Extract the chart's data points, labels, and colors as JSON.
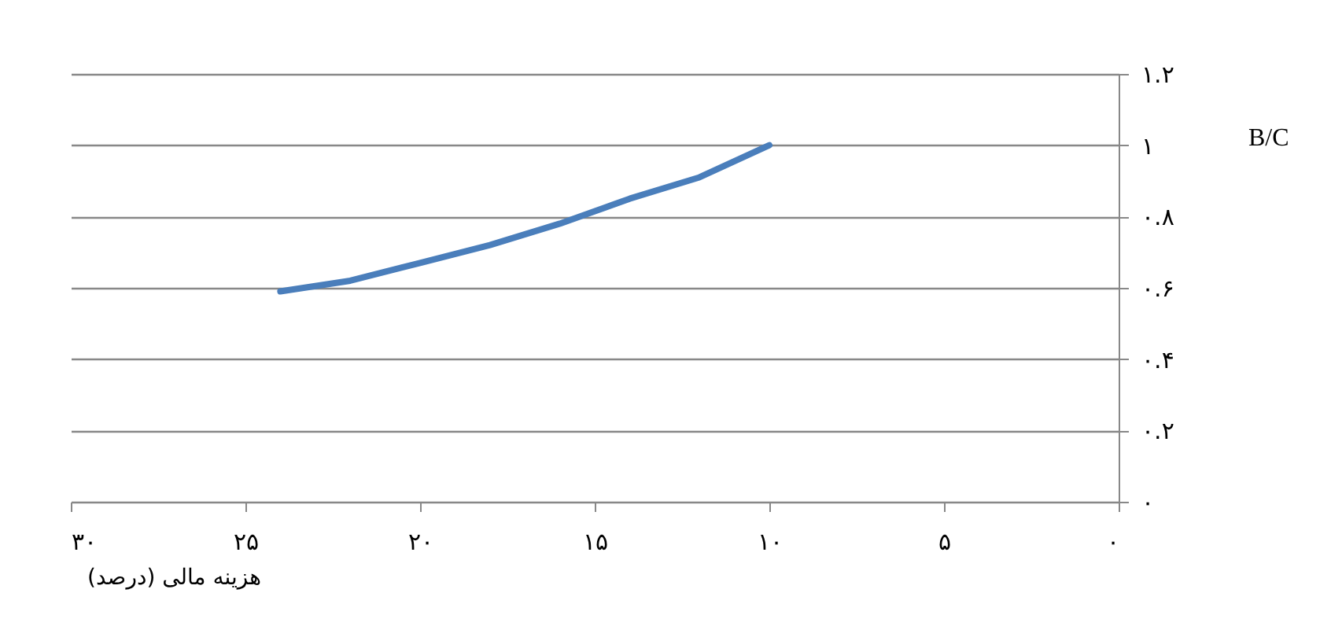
{
  "chart_data": {
    "type": "line",
    "xlabel": "هزینه مالی (درصد)",
    "ylabel": "B/C",
    "x": [
      24,
      22,
      20,
      18,
      16,
      14,
      12,
      10
    ],
    "series": [
      {
        "color": "#4a7ebb",
        "values": [
          0.59,
          0.62,
          0.67,
          0.72,
          0.78,
          0.85,
          0.91,
          1.0
        ]
      }
    ],
    "xlim": [
      30,
      0
    ],
    "ylim": [
      0,
      1.2
    ],
    "xticks": [
      {
        "value": 30,
        "label": "۳۰"
      },
      {
        "value": 25,
        "label": "۲۵"
      },
      {
        "value": 20,
        "label": "۲۰"
      },
      {
        "value": 15,
        "label": "۱۵"
      },
      {
        "value": 10,
        "label": "۱۰"
      },
      {
        "value": 5,
        "label": "۵"
      },
      {
        "value": 0,
        "label": "۰"
      }
    ],
    "yticks": [
      {
        "value": 0,
        "label": "۰"
      },
      {
        "value": 0.2,
        "label": "۰.۲"
      },
      {
        "value": 0.4,
        "label": "۰.۴"
      },
      {
        "value": 0.6,
        "label": "۰.۶"
      },
      {
        "value": 0.8,
        "label": "۰.۸"
      },
      {
        "value": 1,
        "label": "۱"
      },
      {
        "value": 1.2,
        "label": "۱.۲"
      }
    ],
    "grid": "y",
    "marker": "none",
    "line_style": "solid"
  }
}
